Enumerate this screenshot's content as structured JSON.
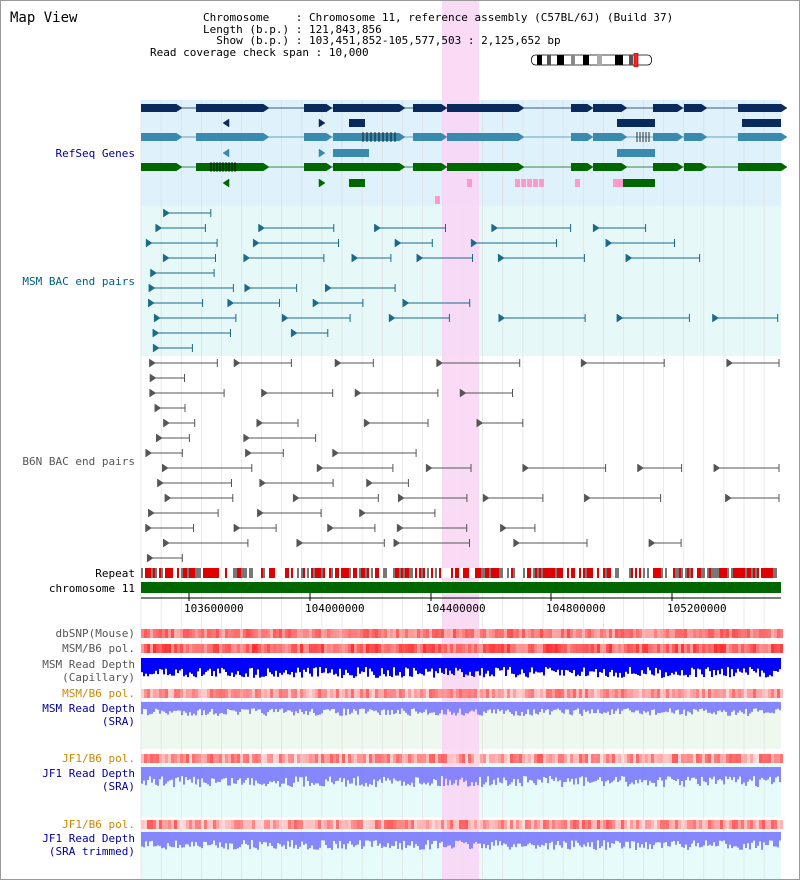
{
  "title": "Map View",
  "info": {
    "chromosome_label": "Chromosome",
    "chromosome_value": "Chromosome 11, reference assembly (C57BL/6J) (Build 37)",
    "length_label": "Length (b.p.)",
    "length_value": "121,843,856",
    "show_label": "Show (b.p.)",
    "show_value": "103,451,852-105,577,503 : 2,125,652 bp",
    "span_label": "Read coverage check span",
    "span_value": "10,000"
  },
  "colors": {
    "refseq_dark": "#0a2a5e",
    "refseq_mid": "#3a8ab0",
    "refseq_green": "#006600",
    "refseq_pink": "#ff99cc",
    "msm_bac": "#1a6a8a",
    "b6n_bac": "#555555",
    "highlight": "#f9d5f5",
    "chromosome_bar": "#006600",
    "label_blue": "#000099",
    "label_teal": "#006080",
    "label_orange": "#cc8800",
    "depth_blue": "#0000ff",
    "depth_light": "#7a7aff"
  },
  "tracks": {
    "refseq": "RefSeq Genes",
    "msm_bac": "MSM BAC end pairs",
    "b6n_bac": "B6N BAC end pairs",
    "repeat": "Repeat",
    "chromosome": "chromosome 11",
    "dbsnp": "dbSNP(Mouse)",
    "msm_b6_pol_1": "MSM/B6 pol.",
    "msm_depth_cap_1": "MSM Read Depth",
    "msm_depth_cap_2": "(Capillary)",
    "msm_b6_pol_2": "MSM/B6 pol.",
    "msm_depth_sra_1": "MSM Read Depth",
    "msm_depth_sra_2": "(SRA)",
    "jf1_b6_pol_1": "JF1/B6 pol.",
    "jf1_depth_sra_1": "JF1 Read Depth",
    "jf1_depth_sra_2": "(SRA)",
    "jf1_b6_pol_2": "JF1/B6 pol.",
    "jf1_depth_trim_1": "JF1 Read Depth",
    "jf1_depth_trim_2": "(SRA trimmed)"
  },
  "axis": {
    "ticks": [
      "103600000",
      "104000000",
      "104400000",
      "104800000",
      "105200000"
    ]
  }
}
